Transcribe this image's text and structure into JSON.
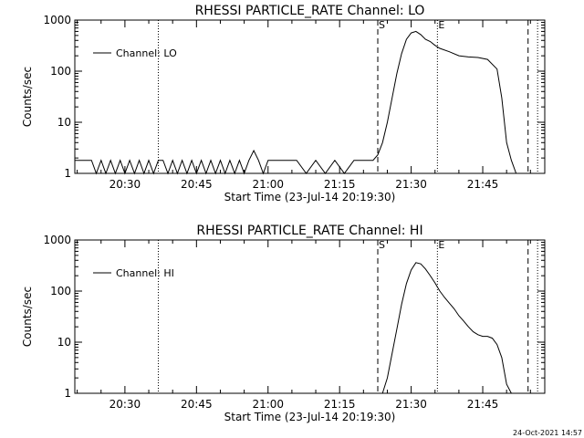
{
  "footer": {
    "text": "24-Oct-2021 14:57"
  },
  "chart_data": [
    {
      "type": "line",
      "title": "RHESSI PARTICLE_RATE Channel: LO",
      "xlabel": "Start Time (23-Jul-14 20:19:30)",
      "ylabel": "Counts/sec",
      "yscale": "log",
      "xlim": [
        "20:19:30",
        "21:58:00"
      ],
      "ylim": [
        1,
        1000
      ],
      "x_ticks": [
        "20:30",
        "20:45",
        "21:00",
        "21:15",
        "21:30",
        "21:45"
      ],
      "y_ticks": [
        "1",
        "10",
        "100",
        "1000"
      ],
      "legend": {
        "position": "top-left",
        "entries": [
          "Channel: LO"
        ]
      },
      "markers": [
        {
          "label": "S",
          "time": "21:23:00",
          "style": "dashed"
        },
        {
          "label": "E",
          "time": "21:35:30",
          "style": "dotted"
        }
      ],
      "extra_lines": [
        {
          "time": "20:37:00",
          "style": "dotted"
        },
        {
          "time": "21:54:30",
          "style": "dashed"
        },
        {
          "time": "21:56:30",
          "style": "dotted"
        }
      ],
      "series": [
        {
          "x": [
            "20:19:30",
            "20:21",
            "20:22",
            "20:23",
            "20:24",
            "20:25",
            "20:26",
            "20:27",
            "20:28",
            "20:29",
            "20:30",
            "20:31",
            "20:32",
            "20:33",
            "20:34",
            "20:35",
            "20:36",
            "20:37",
            "20:38",
            "20:39",
            "20:40",
            "20:41",
            "20:42",
            "20:43",
            "20:44",
            "20:45",
            "20:46",
            "20:47",
            "20:48",
            "20:49",
            "20:50",
            "20:51",
            "20:52",
            "20:53",
            "20:54",
            "20:55",
            "20:56",
            "20:57",
            "20:58",
            "20:59",
            "21:00",
            "21:02",
            "21:04",
            "21:06",
            "21:08",
            "21:10",
            "21:12",
            "21:14",
            "21:16",
            "21:18",
            "21:20",
            "21:22",
            "21:23",
            "21:24",
            "21:25",
            "21:26",
            "21:27",
            "21:28",
            "21:29",
            "21:30",
            "21:31",
            "21:32",
            "21:33",
            "21:34",
            "21:35",
            "21:36",
            "21:38",
            "21:40",
            "21:42",
            "21:44",
            "21:46",
            "21:48",
            "21:49",
            "21:50",
            "21:51",
            "21:52",
            "21:53",
            "21:54"
          ],
          "y": [
            1.8,
            1.8,
            1.8,
            1.8,
            1,
            1.8,
            1,
            1.8,
            1,
            1.8,
            1,
            1.8,
            1,
            1.8,
            1,
            1.8,
            1,
            1.8,
            1.8,
            1,
            1.8,
            1,
            1.8,
            1,
            1.8,
            1,
            1.8,
            1,
            1.8,
            1,
            1.8,
            1,
            1.8,
            1,
            1.8,
            1,
            1.8,
            2.8,
            1.8,
            1,
            1.8,
            1.8,
            1.8,
            1.8,
            1,
            1.8,
            1,
            1.8,
            1,
            1.8,
            1.8,
            1.8,
            2.3,
            4,
            10,
            30,
            90,
            220,
            420,
            560,
            600,
            520,
            420,
            380,
            320,
            280,
            240,
            200,
            190,
            185,
            170,
            110,
            30,
            4,
            1.8,
            1,
            1,
            1
          ]
        }
      ]
    },
    {
      "type": "line",
      "title": "RHESSI PARTICLE_RATE Channel: HI",
      "xlabel": "Start Time (23-Jul-14 20:19:30)",
      "ylabel": "Counts/sec",
      "yscale": "log",
      "xlim": [
        "20:19:30",
        "21:58:00"
      ],
      "ylim": [
        1,
        1000
      ],
      "x_ticks": [
        "20:30",
        "20:45",
        "21:00",
        "21:15",
        "21:30",
        "21:45"
      ],
      "y_ticks": [
        "1",
        "10",
        "100",
        "1000"
      ],
      "legend": {
        "position": "top-left",
        "entries": [
          "Channel: HI"
        ]
      },
      "markers": [
        {
          "label": "S",
          "time": "21:23:00",
          "style": "dashed"
        },
        {
          "label": "E",
          "time": "21:35:30",
          "style": "dotted"
        }
      ],
      "extra_lines": [
        {
          "time": "20:37:00",
          "style": "dotted"
        },
        {
          "time": "21:54:30",
          "style": "dashed"
        },
        {
          "time": "21:56:30",
          "style": "dotted"
        }
      ],
      "series": [
        {
          "x": [
            "21:24:00",
            "21:25",
            "21:26",
            "21:27",
            "21:28",
            "21:29",
            "21:30",
            "21:31",
            "21:32",
            "21:33",
            "21:34",
            "21:35",
            "21:36",
            "21:37",
            "21:38",
            "21:39",
            "21:40",
            "21:41",
            "21:42",
            "21:43",
            "21:44",
            "21:45",
            "21:46",
            "21:47",
            "21:48",
            "21:49",
            "21:50",
            "21:51",
            "21:52",
            "21:53"
          ],
          "y": [
            1,
            2,
            6,
            18,
            55,
            140,
            260,
            360,
            340,
            270,
            200,
            145,
            100,
            75,
            58,
            45,
            33,
            26,
            20,
            16,
            14,
            13,
            13,
            12,
            9,
            5,
            1.5,
            1,
            1,
            1
          ]
        }
      ]
    }
  ]
}
